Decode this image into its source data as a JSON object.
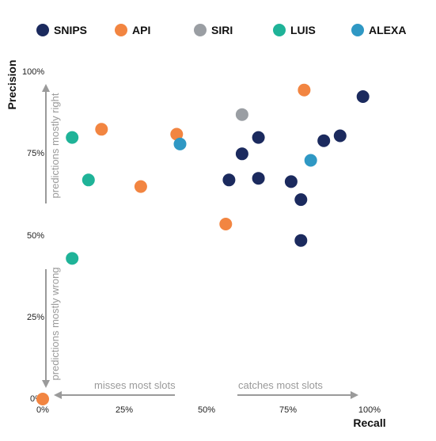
{
  "chart_data": {
    "type": "scatter",
    "xlabel": "Recall",
    "ylabel": "Precision",
    "xlim": [
      0,
      100
    ],
    "ylim": [
      0,
      100
    ],
    "x_ticks": [
      "0%",
      "25%",
      "50%",
      "75%",
      "100%"
    ],
    "y_ticks": [
      "0%",
      "25%",
      "50%",
      "75%",
      "100%"
    ],
    "legend_position": "top",
    "annotations": {
      "x_low": "misses most slots",
      "x_high": "catches most slots",
      "y_low": "predictions mostly wrong",
      "y_high": "predictions mostly right"
    },
    "series": [
      {
        "name": "SNIPS",
        "color": "#1b2a5e",
        "points": [
          [
            57,
            67
          ],
          [
            61,
            75
          ],
          [
            66,
            80
          ],
          [
            66,
            67.5
          ],
          [
            76,
            66.5
          ],
          [
            79,
            61
          ],
          [
            79,
            48.5
          ],
          [
            86,
            79
          ],
          [
            91,
            80.5
          ],
          [
            98,
            92.5
          ]
        ]
      },
      {
        "name": "API",
        "color": "#f28541",
        "points": [
          [
            0,
            0
          ],
          [
            18,
            82.5
          ],
          [
            30,
            65
          ],
          [
            41,
            81
          ],
          [
            56,
            53.5
          ],
          [
            80,
            94.5
          ]
        ]
      },
      {
        "name": "SIRI",
        "color": "#9a9ea3",
        "points": [
          [
            61,
            87
          ]
        ]
      },
      {
        "name": "LUIS",
        "color": "#1fb398",
        "points": [
          [
            9,
            80
          ],
          [
            14,
            67
          ],
          [
            9,
            43
          ]
        ]
      },
      {
        "name": "ALEXA",
        "color": "#2f98c4",
        "points": [
          [
            42,
            78
          ],
          [
            82,
            73
          ]
        ]
      }
    ]
  }
}
